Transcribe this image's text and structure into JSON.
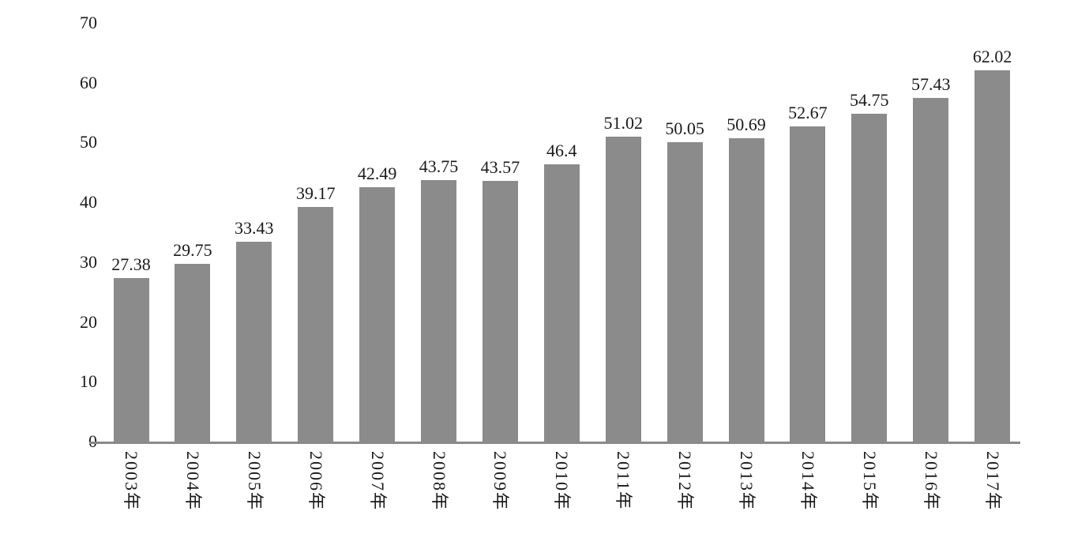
{
  "chart_data": {
    "type": "bar",
    "title": "",
    "xlabel": "",
    "ylabel": "",
    "categories": [
      "2003年",
      "2004年",
      "2005年",
      "2006年",
      "2007年",
      "2008年",
      "2009年",
      "2010年",
      "2011年",
      "2012年",
      "2013年",
      "2014年",
      "2015年",
      "2016年",
      "2017年"
    ],
    "values": [
      27.38,
      29.75,
      33.43,
      39.17,
      42.49,
      43.75,
      43.57,
      46.4,
      51.02,
      50.05,
      50.69,
      52.67,
      54.75,
      57.43,
      62.02
    ],
    "labels": [
      "27.38",
      "29.75",
      "33.43",
      "39.17",
      "42.49",
      "43.75",
      "43.57",
      "46.4",
      "51.02",
      "50.05",
      "50.69",
      "52.67",
      "54.75",
      "57.43",
      "62.02"
    ],
    "ylim": [
      0,
      70
    ],
    "yticks": [
      0,
      10,
      20,
      30,
      40,
      50,
      60,
      70
    ],
    "grid": false,
    "legend": "none",
    "x_label_rotation_deg": 90,
    "colors": {
      "bar": "#8b8b8b",
      "axis_line": "#8a8a8a",
      "text": "#1a1a1a",
      "background": "#ffffff"
    }
  }
}
